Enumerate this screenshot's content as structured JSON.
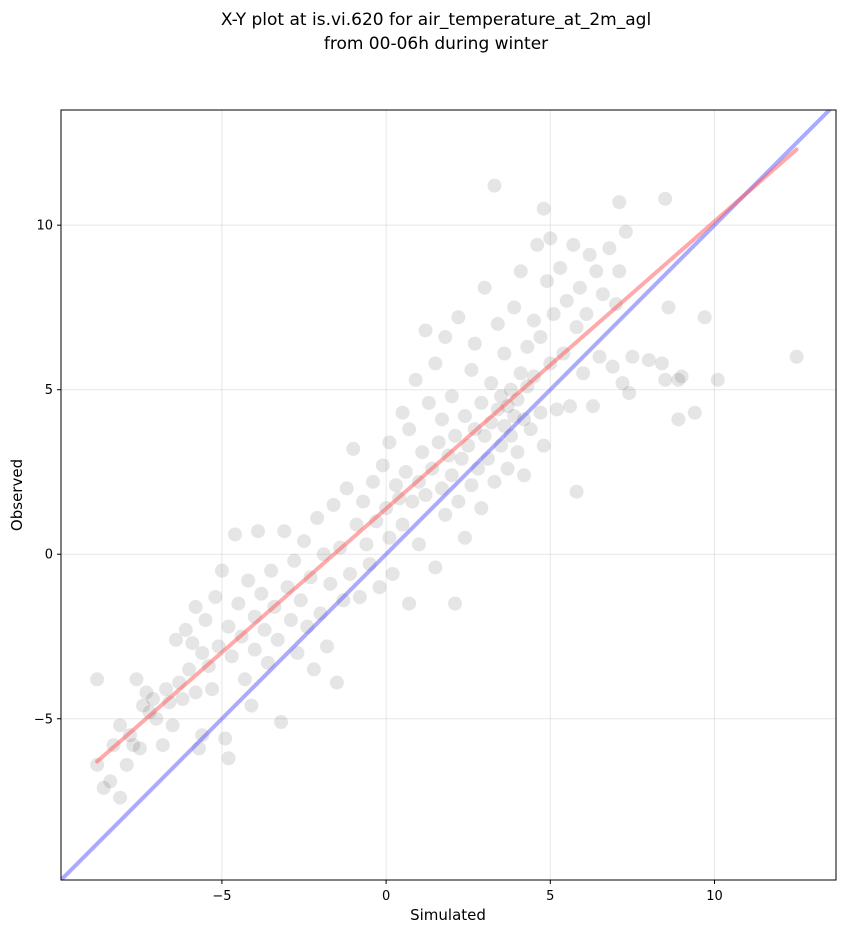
{
  "chart_data": {
    "type": "scatter",
    "title": "X-Y plot at is.vi.620 for air_temperature_at_2m_agl",
    "subtitle": "from 00-06h during winter",
    "xlabel": "Simulated",
    "ylabel": "Observed",
    "xlim": [
      -9.9,
      13.7
    ],
    "ylim": [
      -9.9,
      13.5
    ],
    "xticks": [
      -5,
      0,
      5,
      10
    ],
    "yticks": [
      -5,
      0,
      5,
      10
    ],
    "xtick_labels": [
      "−5",
      "0",
      "5",
      "10"
    ],
    "ytick_labels": [
      "−5",
      "0",
      "5",
      "10"
    ],
    "grid": true,
    "marker_color": "#000000",
    "marker_opacity": 0.1,
    "fit_line": {
      "color": "#ff5555",
      "opacity": 0.5,
      "x": [
        -8.8,
        12.5
      ],
      "y": [
        -6.3,
        12.3
      ]
    },
    "identity_line": {
      "color": "#5555ff",
      "opacity": 0.5,
      "x": [
        -9.9,
        13.7
      ],
      "y": [
        -9.9,
        13.7
      ]
    },
    "points": [
      [
        -8.8,
        -3.8
      ],
      [
        -8.8,
        -6.4
      ],
      [
        -8.6,
        -7.1
      ],
      [
        -8.4,
        -6.9
      ],
      [
        -8.3,
        -5.8
      ],
      [
        -8.1,
        -7.4
      ],
      [
        -8.1,
        -5.2
      ],
      [
        -7.9,
        -6.4
      ],
      [
        -7.8,
        -5.5
      ],
      [
        -7.7,
        -5.8
      ],
      [
        -7.6,
        -3.8
      ],
      [
        -7.5,
        -5.9
      ],
      [
        -7.4,
        -4.6
      ],
      [
        -7.3,
        -4.2
      ],
      [
        -7.2,
        -4.8
      ],
      [
        -7.1,
        -4.4
      ],
      [
        -7.0,
        -5.0
      ],
      [
        -6.8,
        -5.8
      ],
      [
        -6.7,
        -4.1
      ],
      [
        -6.6,
        -4.5
      ],
      [
        -6.5,
        -5.2
      ],
      [
        -6.4,
        -2.6
      ],
      [
        -6.3,
        -3.9
      ],
      [
        -6.2,
        -4.4
      ],
      [
        -6.1,
        -2.3
      ],
      [
        -6.0,
        -3.5
      ],
      [
        -5.9,
        -2.7
      ],
      [
        -5.8,
        -4.2
      ],
      [
        -5.8,
        -1.6
      ],
      [
        -5.7,
        -5.9
      ],
      [
        -5.6,
        -3.0
      ],
      [
        -5.6,
        -5.5
      ],
      [
        -5.5,
        -2.0
      ],
      [
        -5.4,
        -3.4
      ],
      [
        -5.3,
        -4.1
      ],
      [
        -5.2,
        -1.3
      ],
      [
        -5.1,
        -2.8
      ],
      [
        -5.0,
        -0.5
      ],
      [
        -4.9,
        -5.6
      ],
      [
        -4.8,
        -6.2
      ],
      [
        -4.8,
        -2.2
      ],
      [
        -4.7,
        -3.1
      ],
      [
        -4.6,
        0.6
      ],
      [
        -4.5,
        -1.5
      ],
      [
        -4.4,
        -2.5
      ],
      [
        -4.3,
        -3.8
      ],
      [
        -4.2,
        -0.8
      ],
      [
        -4.1,
        -4.6
      ],
      [
        -4.0,
        -1.9
      ],
      [
        -4.0,
        -2.9
      ],
      [
        -3.9,
        0.7
      ],
      [
        -3.8,
        -1.2
      ],
      [
        -3.7,
        -2.3
      ],
      [
        -3.6,
        -3.3
      ],
      [
        -3.5,
        -0.5
      ],
      [
        -3.4,
        -1.6
      ],
      [
        -3.3,
        -2.6
      ],
      [
        -3.2,
        -5.1
      ],
      [
        -3.1,
        0.7
      ],
      [
        -3.0,
        -1.0
      ],
      [
        -2.9,
        -2.0
      ],
      [
        -2.8,
        -0.2
      ],
      [
        -2.7,
        -3.0
      ],
      [
        -2.6,
        -1.4
      ],
      [
        -2.5,
        0.4
      ],
      [
        -2.4,
        -2.2
      ],
      [
        -2.3,
        -0.7
      ],
      [
        -2.2,
        -3.5
      ],
      [
        -2.1,
        1.1
      ],
      [
        -2.0,
        -1.8
      ],
      [
        -1.9,
        0.0
      ],
      [
        -1.8,
        -2.8
      ],
      [
        -1.7,
        -0.9
      ],
      [
        -1.6,
        1.5
      ],
      [
        -1.5,
        -3.9
      ],
      [
        -1.4,
        0.2
      ],
      [
        -1.3,
        -1.4
      ],
      [
        -1.2,
        2.0
      ],
      [
        -1.1,
        -0.6
      ],
      [
        -1.0,
        3.2
      ],
      [
        -0.9,
        0.9
      ],
      [
        -0.8,
        -1.3
      ],
      [
        -0.7,
        1.6
      ],
      [
        -0.6,
        0.3
      ],
      [
        -0.5,
        -0.3
      ],
      [
        -0.4,
        2.2
      ],
      [
        -0.3,
        1.0
      ],
      [
        -0.2,
        -1.0
      ],
      [
        -0.1,
        2.7
      ],
      [
        0.0,
        1.4
      ],
      [
        0.1,
        0.5
      ],
      [
        0.1,
        3.4
      ],
      [
        0.2,
        -0.6
      ],
      [
        0.3,
        2.1
      ],
      [
        0.4,
        1.7
      ],
      [
        0.5,
        4.3
      ],
      [
        0.5,
        0.9
      ],
      [
        0.6,
        2.5
      ],
      [
        0.7,
        -1.5
      ],
      [
        0.7,
        3.8
      ],
      [
        0.8,
        1.6
      ],
      [
        0.9,
        5.3
      ],
      [
        1.0,
        2.2
      ],
      [
        1.0,
        0.3
      ],
      [
        1.1,
        3.1
      ],
      [
        1.2,
        6.8
      ],
      [
        1.2,
        1.8
      ],
      [
        1.3,
        4.6
      ],
      [
        1.4,
        2.6
      ],
      [
        1.5,
        -0.4
      ],
      [
        1.5,
        5.8
      ],
      [
        1.6,
        3.4
      ],
      [
        1.7,
        2.0
      ],
      [
        1.7,
        4.1
      ],
      [
        1.8,
        1.2
      ],
      [
        1.8,
        6.6
      ],
      [
        1.9,
        3.0
      ],
      [
        2.0,
        2.4
      ],
      [
        2.0,
        4.8
      ],
      [
        2.1,
        3.6
      ],
      [
        2.1,
        -1.5
      ],
      [
        2.2,
        1.6
      ],
      [
        2.2,
        7.2
      ],
      [
        2.3,
        2.9
      ],
      [
        2.4,
        4.2
      ],
      [
        2.4,
        0.5
      ],
      [
        2.5,
        3.3
      ],
      [
        2.6,
        5.6
      ],
      [
        2.6,
        2.1
      ],
      [
        2.7,
        3.8
      ],
      [
        2.7,
        6.4
      ],
      [
        2.8,
        2.6
      ],
      [
        2.9,
        4.6
      ],
      [
        2.9,
        1.4
      ],
      [
        3.0,
        3.6
      ],
      [
        3.0,
        8.1
      ],
      [
        3.1,
        2.9
      ],
      [
        3.2,
        5.2
      ],
      [
        3.2,
        4.0
      ],
      [
        3.3,
        11.2
      ],
      [
        3.3,
        2.2
      ],
      [
        3.4,
        4.4
      ],
      [
        3.4,
        7.0
      ],
      [
        3.5,
        3.3
      ],
      [
        3.5,
        4.8
      ],
      [
        3.6,
        3.9
      ],
      [
        3.6,
        6.1
      ],
      [
        3.7,
        4.5
      ],
      [
        3.7,
        2.6
      ],
      [
        3.8,
        5.0
      ],
      [
        3.8,
        3.6
      ],
      [
        3.9,
        4.2
      ],
      [
        3.9,
        7.5
      ],
      [
        4.0,
        4.7
      ],
      [
        4.0,
        3.1
      ],
      [
        4.1,
        5.5
      ],
      [
        4.1,
        8.6
      ],
      [
        4.2,
        4.1
      ],
      [
        4.2,
        2.4
      ],
      [
        4.3,
        6.3
      ],
      [
        4.3,
        5.1
      ],
      [
        4.4,
        3.8
      ],
      [
        4.5,
        7.1
      ],
      [
        4.5,
        5.4
      ],
      [
        4.6,
        9.4
      ],
      [
        4.7,
        4.3
      ],
      [
        4.7,
        6.6
      ],
      [
        4.8,
        10.5
      ],
      [
        4.8,
        3.3
      ],
      [
        4.9,
        8.3
      ],
      [
        5.0,
        5.8
      ],
      [
        5.0,
        9.6
      ],
      [
        5.1,
        7.3
      ],
      [
        5.2,
        4.4
      ],
      [
        5.3,
        8.7
      ],
      [
        5.4,
        6.1
      ],
      [
        5.5,
        7.7
      ],
      [
        5.6,
        4.5
      ],
      [
        5.7,
        9.4
      ],
      [
        5.8,
        1.9
      ],
      [
        5.8,
        6.9
      ],
      [
        5.9,
        8.1
      ],
      [
        6.0,
        5.5
      ],
      [
        6.1,
        7.3
      ],
      [
        6.2,
        9.1
      ],
      [
        6.3,
        4.5
      ],
      [
        6.4,
        8.6
      ],
      [
        6.5,
        6.0
      ],
      [
        6.6,
        7.9
      ],
      [
        6.8,
        9.3
      ],
      [
        6.9,
        5.7
      ],
      [
        7.0,
        7.6
      ],
      [
        7.1,
        8.6
      ],
      [
        7.1,
        10.7
      ],
      [
        7.2,
        5.2
      ],
      [
        7.3,
        9.8
      ],
      [
        7.4,
        4.9
      ],
      [
        7.5,
        6.0
      ],
      [
        8.0,
        5.9
      ],
      [
        8.4,
        5.8
      ],
      [
        8.5,
        10.8
      ],
      [
        8.5,
        5.3
      ],
      [
        8.6,
        7.5
      ],
      [
        8.9,
        4.1
      ],
      [
        8.9,
        5.3
      ],
      [
        9.0,
        5.4
      ],
      [
        9.4,
        4.3
      ],
      [
        9.7,
        7.2
      ],
      [
        10.1,
        5.3
      ],
      [
        12.5,
        6.0
      ]
    ]
  }
}
